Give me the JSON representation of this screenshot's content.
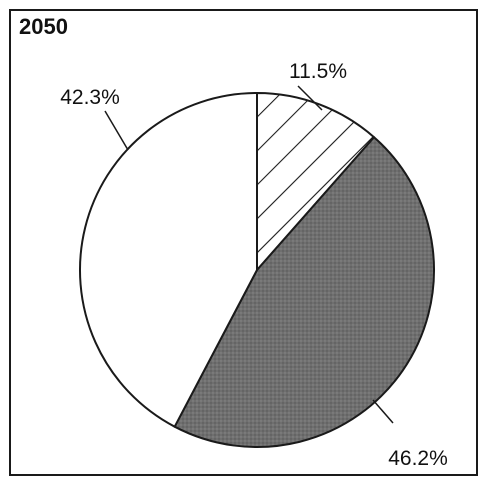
{
  "chart_data": {
    "type": "pie",
    "title": "2050",
    "start_angle_deg": 0,
    "direction": "clockwise",
    "slices": [
      {
        "label": "11.5%",
        "value": 11.5,
        "fill": "hatch"
      },
      {
        "label": "46.2%",
        "value": 46.2,
        "fill": "dark-stipple"
      },
      {
        "label": "42.3%",
        "value": 42.3,
        "fill": "white"
      }
    ],
    "legend": "none",
    "grid": false
  },
  "colors": {
    "outline": "#1a1a1a",
    "dark_fill": "#6f6f6f",
    "white_fill": "#ffffff",
    "hatch_line": "#1a1a1a"
  }
}
